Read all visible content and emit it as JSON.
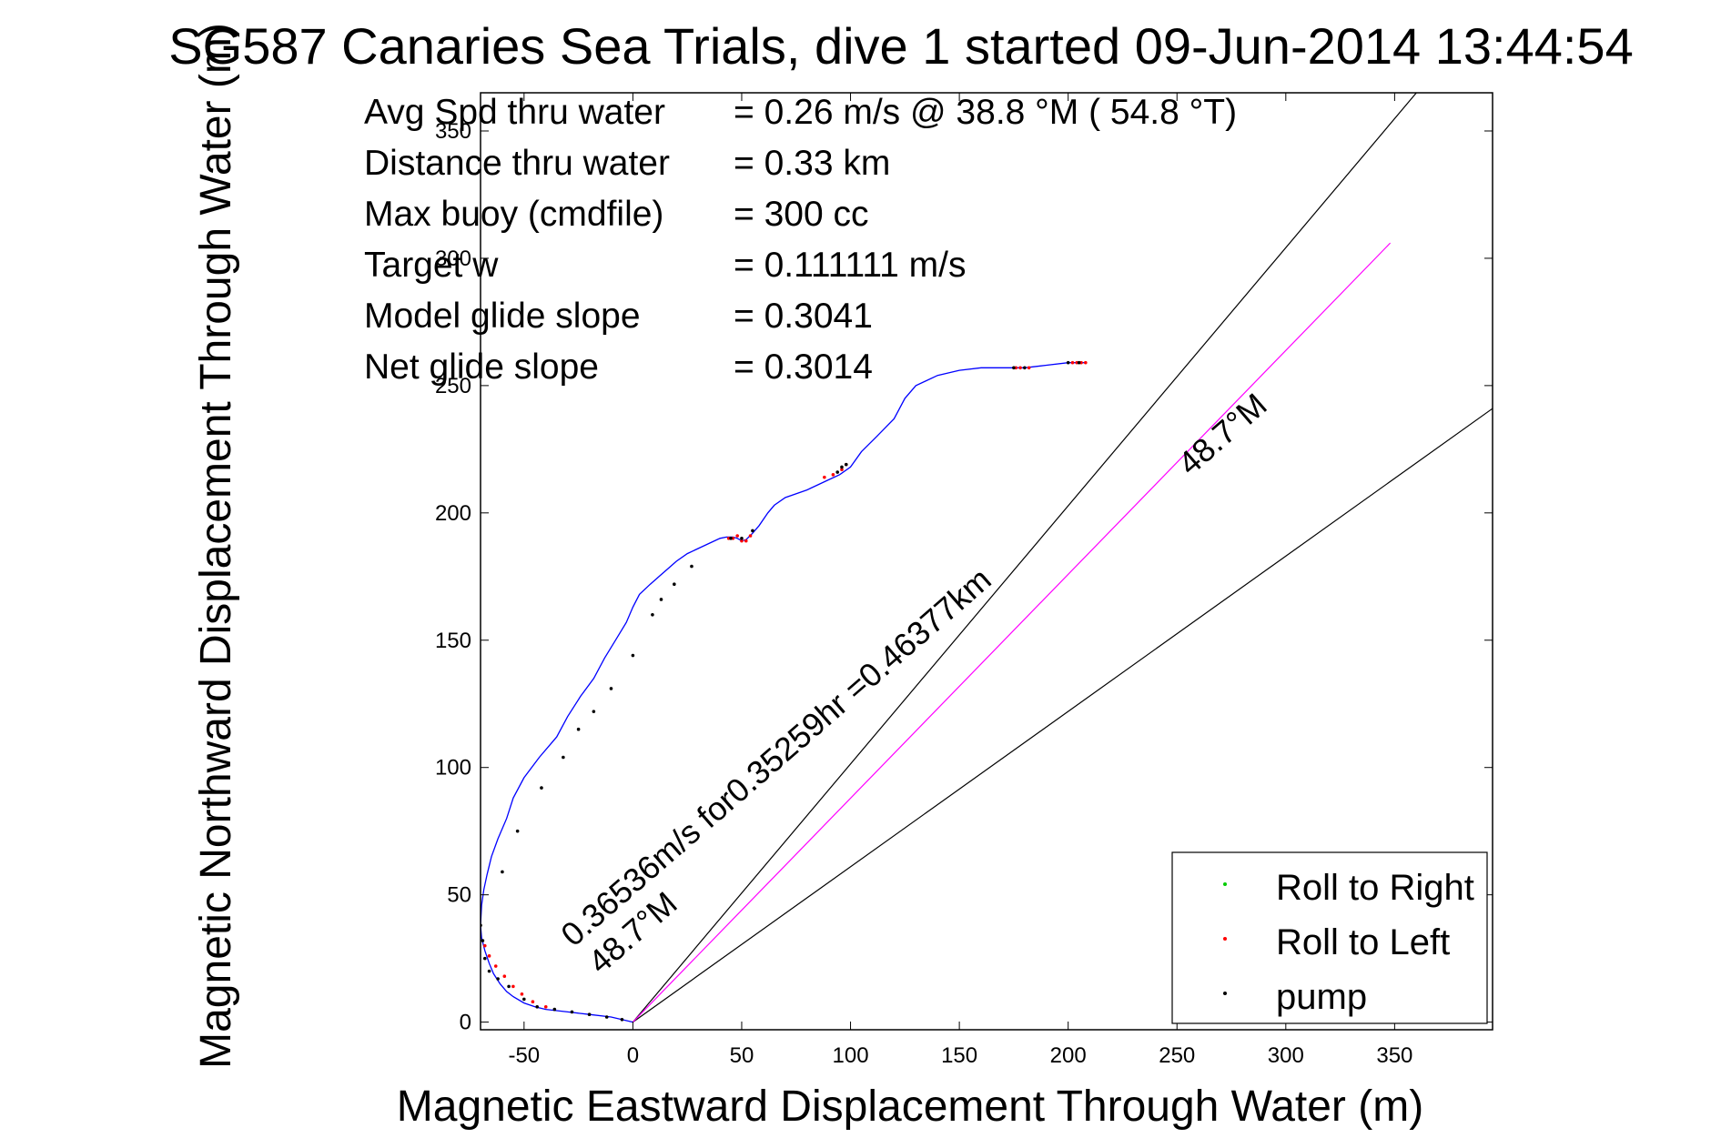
{
  "chart_data": {
    "type": "line",
    "title": "SG587 Canaries Sea Trials, dive 1 started 09-Jun-2014 13:44:54",
    "xlabel": "Magnetic Eastward Displacement Through Water (m)",
    "ylabel": "Magnetic Northward Displacement Through Water (m)",
    "xlim": [
      -70,
      395
    ],
    "ylim": [
      -3,
      365
    ],
    "xticks": [
      -50,
      0,
      50,
      100,
      150,
      200,
      250,
      300,
      350
    ],
    "yticks": [
      0,
      50,
      100,
      150,
      200,
      250,
      300,
      350
    ],
    "grid": false,
    "legend_position": "bottom-right",
    "info_lines": [
      {
        "label": "Avg Spd thru water",
        "value": "=  0.26 m/s @  38.8 °M ( 54.8 °T)"
      },
      {
        "label": "Distance thru water",
        "value": "=  0.33 km"
      },
      {
        "label": "Max buoy (cmdfile)",
        "value": "= 300 cc"
      },
      {
        "label": "Target w",
        "value": "= 0.111111 m/s"
      },
      {
        "label": "Model glide slope",
        "value": "= 0.3041"
      },
      {
        "label": "Net glide slope",
        "value": "= 0.3014"
      }
    ],
    "annotations": {
      "main": "0.36536m/s for0.35259hr =0.46377km",
      "heading_upper": "48.7°M",
      "heading_lower": "48.7°M"
    },
    "legend": [
      {
        "label": "Roll to Right",
        "color": "#00cc00"
      },
      {
        "label": "Roll to Left",
        "color": "#ff0000"
      },
      {
        "label": "pump",
        "color": "#000000"
      }
    ],
    "colors": {
      "track": "#0000ff",
      "heading_line": "#ff00ff",
      "lines": "#000000"
    },
    "track": {
      "x": [
        0,
        -5,
        -10,
        -15,
        -20,
        -25,
        -30,
        -35,
        -40,
        -45,
        -50,
        -54,
        -58,
        -62,
        -65,
        -67,
        -68.5,
        -69.5,
        -70,
        -69.5,
        -68.5,
        -67,
        -65,
        -62,
        -58,
        -54,
        -50,
        -45,
        -40,
        -35,
        -30,
        -25,
        -20,
        -15,
        -10,
        -5,
        0,
        5,
        10,
        15,
        20,
        25,
        30,
        35,
        40,
        43,
        46,
        49,
        52,
        55,
        60,
        65,
        75,
        85,
        95,
        100,
        105,
        110,
        120,
        125,
        130,
        140,
        150,
        160,
        170,
        180,
        190,
        200,
        208
      ],
      "y": [
        0,
        1.5,
        2.5,
        3,
        4,
        4.5,
        5,
        5.5,
        6,
        7,
        9,
        11,
        14,
        17,
        21,
        25,
        30,
        36,
        42,
        48,
        54,
        60,
        65,
        72,
        80,
        88,
        96,
        104,
        112,
        120,
        128,
        135,
        143,
        150,
        157,
        164,
        170,
        176,
        182,
        188,
        193,
        197,
        201,
        204,
        206,
        207,
        207,
        207,
        206,
        205,
        204,
        203,
        205,
        208,
        212,
        216,
        220,
        224,
        230,
        240,
        250,
        256,
        257,
        257,
        257,
        258,
        258,
        259,
        259
      ]
    },
    "track_display": {
      "x": [
        0,
        -10,
        -20,
        -30,
        -35,
        -40,
        -45,
        -50,
        -55,
        -58,
        -61,
        -64,
        -66,
        -68,
        -69.5,
        -70,
        -69.5,
        -68.5,
        -67,
        -65,
        -62,
        -58,
        -55,
        -50,
        -43,
        -35,
        -30,
        -24,
        -18,
        -13,
        -8,
        -3,
        0,
        3,
        8,
        12,
        16,
        20,
        25,
        30,
        35,
        40,
        43,
        46,
        48,
        50,
        52,
        55,
        58,
        62,
        65,
        70,
        80,
        90,
        95,
        100,
        105,
        112,
        120,
        125,
        130,
        140,
        150,
        160,
        170,
        180,
        190,
        200,
        208
      ],
      "y": [
        0,
        2,
        3,
        4,
        4.5,
        5,
        6,
        7.5,
        10,
        12,
        15,
        19,
        23,
        28,
        33,
        38,
        46,
        52,
        58,
        65,
        72,
        80,
        88,
        96,
        104,
        112,
        120,
        128,
        135,
        143,
        150,
        157,
        163,
        168,
        172,
        175,
        178,
        181,
        184,
        186,
        188,
        190,
        190.5,
        190.5,
        190,
        189,
        189.5,
        192,
        195,
        200,
        203,
        206,
        209,
        213,
        215,
        218,
        224,
        230,
        237,
        245,
        250,
        254,
        256,
        257,
        257,
        257,
        258,
        259,
        259
      ]
    },
    "pump_x": [
      -66,
      -62,
      -57,
      -50,
      -44,
      -36,
      -28,
      -20,
      -12,
      -5,
      -68,
      -69,
      -70,
      -60,
      -53,
      -42,
      -32,
      -25,
      -18,
      -10,
      0,
      9,
      13,
      19,
      27,
      45,
      50,
      55,
      94,
      96,
      98,
      175,
      180,
      200,
      205
    ],
    "pump_y": [
      20,
      17,
      14,
      9,
      6,
      5,
      4,
      3,
      2,
      1,
      25,
      32,
      38,
      59,
      75,
      92,
      104,
      115,
      122,
      131,
      144,
      160,
      166,
      172,
      179,
      190,
      190,
      193,
      216,
      218,
      219,
      257,
      257,
      259,
      259
    ],
    "roll_left_x": [
      -68,
      -66,
      -63,
      -59,
      -55,
      -51,
      -46,
      -40,
      44,
      46,
      48,
      50,
      52,
      54,
      88,
      92,
      96,
      98,
      176,
      178,
      182,
      202,
      204,
      206,
      208
    ],
    "roll_left_y": [
      30,
      26,
      22,
      18,
      14,
      11,
      8,
      6,
      190,
      190,
      191,
      189,
      189,
      191,
      214,
      215,
      217,
      219,
      257,
      257,
      257,
      259,
      259,
      259,
      259
    ],
    "lines": [
      {
        "x": [
          0,
          360
        ],
        "y": [
          0,
          365
        ],
        "color": "#000000"
      },
      {
        "x": [
          0,
          395
        ],
        "y": [
          0,
          241
        ],
        "color": "#000000"
      },
      {
        "x": [
          0,
          348
        ],
        "y": [
          0,
          306
        ],
        "color": "#ff00ff"
      }
    ]
  }
}
